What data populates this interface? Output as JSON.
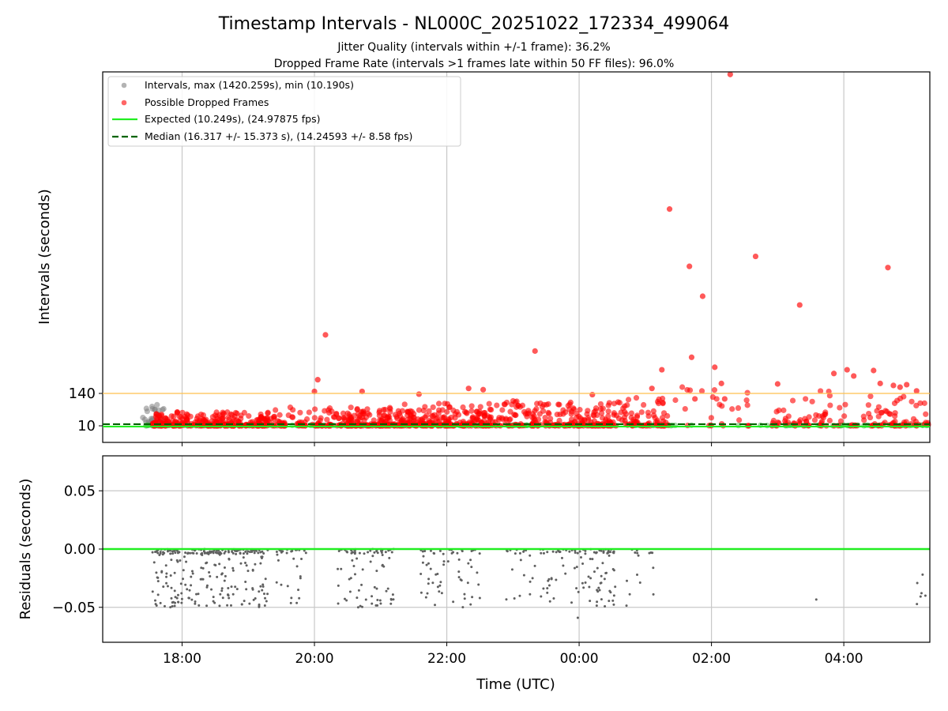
{
  "title": "Timestamp Intervals - NL000C_20251022_172334_499064",
  "subtitle_1": "Jitter Quality (intervals within +/-1 frame): 36.2%",
  "subtitle_2": "Dropped Frame Rate (intervals >1 frames late within 50 FF files): 96.0%",
  "colors": {
    "intervals": "#808080",
    "dropped": "#ff0000",
    "expected": "#22ee22",
    "median": "#006400",
    "threshold": "#ffc04d",
    "grid": "#c8c8c8",
    "residuals": "#606060"
  },
  "chart_data": [
    {
      "type": "scatter",
      "ylabel": "Intervals (seconds)",
      "y_ticks": [
        10,
        140
      ],
      "y_tick_labels": [
        "10",
        "140"
      ],
      "xlim_hours": [
        16.8,
        29.3
      ],
      "x_tick_labels": [
        "18:00",
        "20:00",
        "22:00",
        "00:00",
        "02:00",
        "04:00"
      ],
      "legend_position": "upper-left",
      "grid": "vertical",
      "expected_interval": 10.249,
      "median_interval": 16.317,
      "threshold_interval": 140,
      "legend": [
        "Intervals, max (1420.259s), min (10.190s)",
        "Possible Dropped Frames",
        "Expected (10.249s), (24.97875 fps)",
        "Median (16.317 +/- 15.373 s), (14.24593 +/- 8.58 fps)"
      ],
      "series": [
        {
          "name": "Intervals, max (1420.259s), min (10.190s)",
          "description": "grey points, clustered 10.2-100 s, start ~17:25 UTC",
          "x_start": "17:25",
          "x_end": "05:15",
          "max": 1420.259,
          "min": 10.19
        },
        {
          "name": "Possible Dropped Frames",
          "description": "red points, mostly 10-120 s, sparse outliers up to 1420.259 s (~02:17 UTC)",
          "notable_points": [
            {
              "x": "02:17",
              "y": 1420.259
            },
            {
              "x": "01:22",
              "y": 880
            },
            {
              "x": "01:40",
              "y": 650
            },
            {
              "x": "02:40",
              "y": 690
            },
            {
              "x": "04:40",
              "y": 645
            },
            {
              "x": "01:52",
              "y": 530
            },
            {
              "x": "03:20",
              "y": 495
            },
            {
              "x": "20:10",
              "y": 375
            },
            {
              "x": "23:20",
              "y": 310
            }
          ]
        }
      ]
    },
    {
      "type": "scatter",
      "xlabel": "Time (UTC)",
      "ylabel": "Residuals (seconds)",
      "ylim": [
        -0.08,
        0.08
      ],
      "y_ticks": [
        0.05,
        0.0,
        -0.05
      ],
      "y_tick_labels": [
        "0.05",
        "0.00",
        "−0.05"
      ],
      "xlim_hours": [
        16.8,
        29.3
      ],
      "x_tick_labels": [
        "18:00",
        "20:00",
        "22:00",
        "00:00",
        "02:00",
        "04:00"
      ],
      "grid": "both",
      "zero_line": 0.0,
      "series": [
        {
          "description": "grey residual points between 0.00 and -0.06 s, dense 17:35-19:20, 20:25-21:15, 21:40-22:30, 23:10-00:55, sparse later",
          "range": [
            -0.06,
            0.0
          ]
        }
      ]
    }
  ]
}
